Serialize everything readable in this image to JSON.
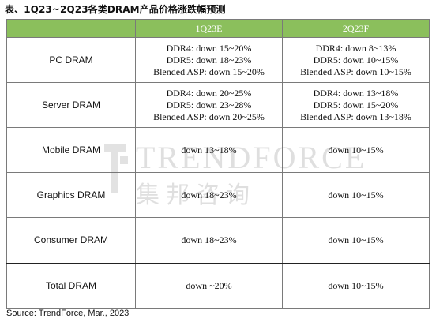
{
  "title": "表、1Q23~2Q23各类DRAM产品价格涨跌幅预测",
  "columns": [
    "",
    "1Q23E",
    "2Q23F"
  ],
  "rows": [
    {
      "label": "PC DRAM",
      "q1": [
        "DDR4: down 15~20%",
        "DDR5: down 18~23%",
        "Blended ASP: down 15~20%"
      ],
      "q2": [
        "DDR4: down 8~13%",
        "DDR5: down 10~15%",
        "Blended ASP: down 10~15%"
      ]
    },
    {
      "label": "Server DRAM",
      "q1": [
        "DDR4: down 20~25%",
        "DDR5: down 23~28%",
        "Blended ASP: down 20~25%"
      ],
      "q2": [
        "DDR4: down 13~18%",
        "DDR5: down 15~20%",
        "Blended ASP: down 13~18%"
      ]
    },
    {
      "label": "Mobile DRAM",
      "q1": [
        "down 13~18%"
      ],
      "q2": [
        "down 10~15%"
      ]
    },
    {
      "label": "Graphics DRAM",
      "q1": [
        "down 18~23%"
      ],
      "q2": [
        "down 10~15%"
      ]
    },
    {
      "label": "Consumer DRAM",
      "q1": [
        "down 18~23%"
      ],
      "q2": [
        "down 10~15%"
      ]
    },
    {
      "label": "Total DRAM",
      "q1": [
        "down ~20%"
      ],
      "q2": [
        "down 10~15%"
      ]
    }
  ],
  "watermark": {
    "en": "TRENDFORCE",
    "cn": "集邦咨询"
  },
  "source": "Source: TrendForce, Mar., 2023",
  "colors": {
    "header_bg": "#8bbf5c",
    "header_text": "#ffffff",
    "border": "#7a7a7a"
  }
}
